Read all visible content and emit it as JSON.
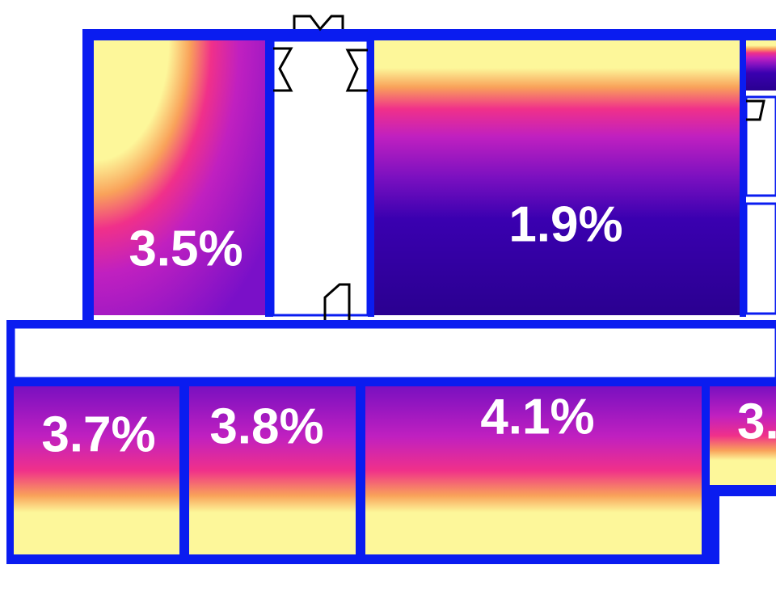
{
  "rooms": [
    {
      "label": "3.5%"
    },
    {
      "label": "1.9%"
    },
    {
      "label": "3.7%"
    },
    {
      "label": "3.8%"
    },
    {
      "label": "4.1%"
    },
    {
      "label": "3."
    }
  ]
}
